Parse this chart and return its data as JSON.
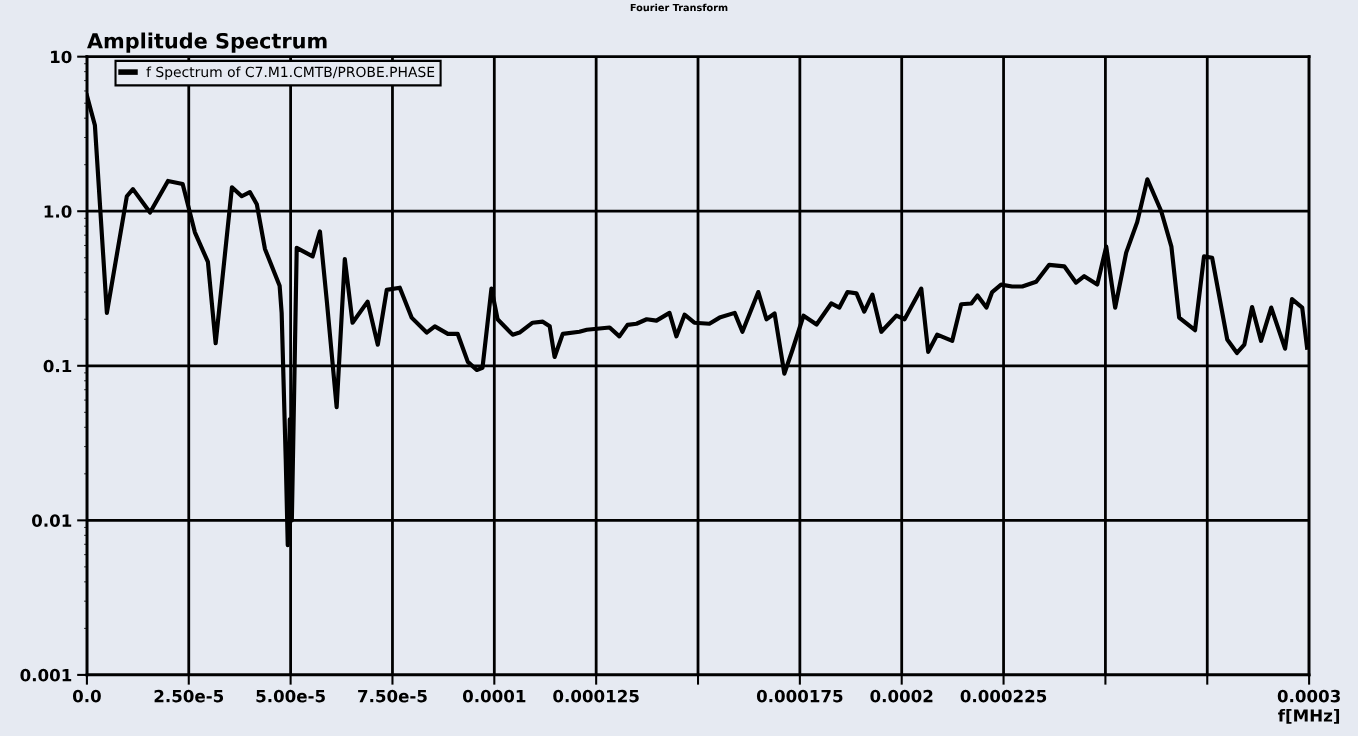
{
  "chart_data": {
    "type": "line",
    "title": "Amplitude Spectrum",
    "xlabel": "f[MHz]",
    "annotations": [
      "Fourier Transform"
    ],
    "log": "y",
    "grid": true,
    "legend": "top left",
    "marker": "none",
    "line_style": "solid",
    "xlim": [
      0,
      0.0003
    ],
    "ylim": [
      0.001,
      10
    ],
    "xticks": [
      {
        "value": 0,
        "label": "0.0"
      },
      {
        "value": 2.5e-05,
        "label": "2.50e-5"
      },
      {
        "value": 5e-05,
        "label": "5.00e-5"
      },
      {
        "value": 7.5e-05,
        "label": "7.50e-5"
      },
      0.0001,
      0.000125,
      {
        "value": 0.00015,
        "label": null
      },
      0.000175,
      0.0002,
      0.000225,
      {
        "value": 0.00025,
        "label": null
      },
      {
        "value": 0.000275,
        "label": null
      },
      0.0003
    ],
    "yticks": [
      0.001,
      0.01,
      0.1,
      {
        "value": 1,
        "label": "1.0"
      },
      10
    ],
    "series": [
      {
        "name": "f Spectrum of C7.M1.CMTB/PROBE.PHASE",
        "color": "#000000",
        "x": [
          0,
          1.96e-06,
          4.9e-06,
          9.8e-06,
          1.13e-05,
          1.55e-05,
          1.99e-05,
          2.35e-05,
          2.65e-05,
          2.97e-05,
          3.16e-05,
          3.56e-05,
          3.8e-05,
          4e-05,
          4.17e-05,
          4.37e-05,
          4.73e-05,
          4.78e-05,
          4.88e-05,
          4.93e-05,
          4.98e-05,
          5.03e-05,
          5.15e-05,
          5.54e-05,
          5.72e-05,
          5.89e-05,
          6.13e-05,
          6.33e-05,
          6.52e-05,
          6.89e-05,
          7.14e-05,
          7.36e-05,
          7.68e-05,
          7.97e-05,
          8.34e-05,
          8.54e-05,
          8.86e-05,
          9.1e-05,
          9.35e-05,
          9.57e-05,
          9.71e-05,
          9.93e-05,
          0.0001008,
          0.0001045,
          0.0001062,
          0.0001094,
          0.0001119,
          0.0001136,
          0.0001148,
          0.0001168,
          0.0001209,
          0.0001227,
          0.0001283,
          0.0001307,
          0.0001327,
          0.0001349,
          0.0001374,
          0.0001398,
          0.000143,
          0.0001447,
          0.0001467,
          0.0001491,
          0.0001528,
          0.0001553,
          0.000159,
          0.0001609,
          0.0001648,
          0.0001668,
          0.0001688,
          0.0001712,
          0.0001732,
          0.0001759,
          0.0001791,
          0.0001827,
          0.0001847,
          0.0001867,
          0.0001889,
          0.0001908,
          0.0001928,
          0.000195,
          0.0001987,
          0.0002007,
          0.0002048,
          0.0002065,
          0.0002087,
          0.0002124,
          0.0002146,
          0.0002171,
          0.0002186,
          0.0002208,
          0.0002222,
          0.0002244,
          0.0002271,
          0.0002296,
          0.000233,
          0.0002362,
          0.0002399,
          0.0002428,
          0.0002448,
          0.000248,
          0.0002502,
          0.0002524,
          0.0002551,
          0.0002578,
          0.0002603,
          0.0002637,
          0.0002662,
          0.0002681,
          0.000272,
          0.0002742,
          0.0002762,
          0.0002799,
          0.0002823,
          0.0002841,
          0.000286,
          0.0002882,
          0.0002907,
          0.0002941,
          0.0002958,
          0.0002983,
          0.0002995
        ],
        "values": [
          5.6,
          3.6,
          0.22,
          1.25,
          1.39,
          0.98,
          1.57,
          1.5,
          0.73,
          0.47,
          0.14,
          1.43,
          1.25,
          1.33,
          1.11,
          0.57,
          0.33,
          0.22,
          0.025,
          0.0069,
          0.045,
          0.01,
          0.58,
          0.51,
          0.74,
          0.26,
          0.054,
          0.49,
          0.19,
          0.26,
          0.137,
          0.31,
          0.32,
          0.205,
          0.164,
          0.18,
          0.161,
          0.161,
          0.106,
          0.094,
          0.097,
          0.316,
          0.2,
          0.159,
          0.164,
          0.19,
          0.193,
          0.18,
          0.114,
          0.161,
          0.166,
          0.171,
          0.177,
          0.155,
          0.184,
          0.187,
          0.2,
          0.196,
          0.22,
          0.155,
          0.214,
          0.19,
          0.187,
          0.205,
          0.22,
          0.166,
          0.3,
          0.2,
          0.218,
          0.089,
          0.127,
          0.211,
          0.185,
          0.253,
          0.238,
          0.3,
          0.294,
          0.224,
          0.289,
          0.166,
          0.211,
          0.2,
          0.316,
          0.123,
          0.159,
          0.145,
          0.25,
          0.253,
          0.285,
          0.238,
          0.3,
          0.335,
          0.326,
          0.326,
          0.35,
          0.45,
          0.44,
          0.345,
          0.38,
          0.336,
          0.59,
          0.238,
          0.54,
          0.85,
          1.61,
          1.0,
          0.59,
          0.205,
          0.17,
          0.51,
          0.5,
          0.148,
          0.121,
          0.137,
          0.24,
          0.145,
          0.238,
          0.129,
          0.27,
          0.238,
          0.131
        ]
      }
    ]
  }
}
